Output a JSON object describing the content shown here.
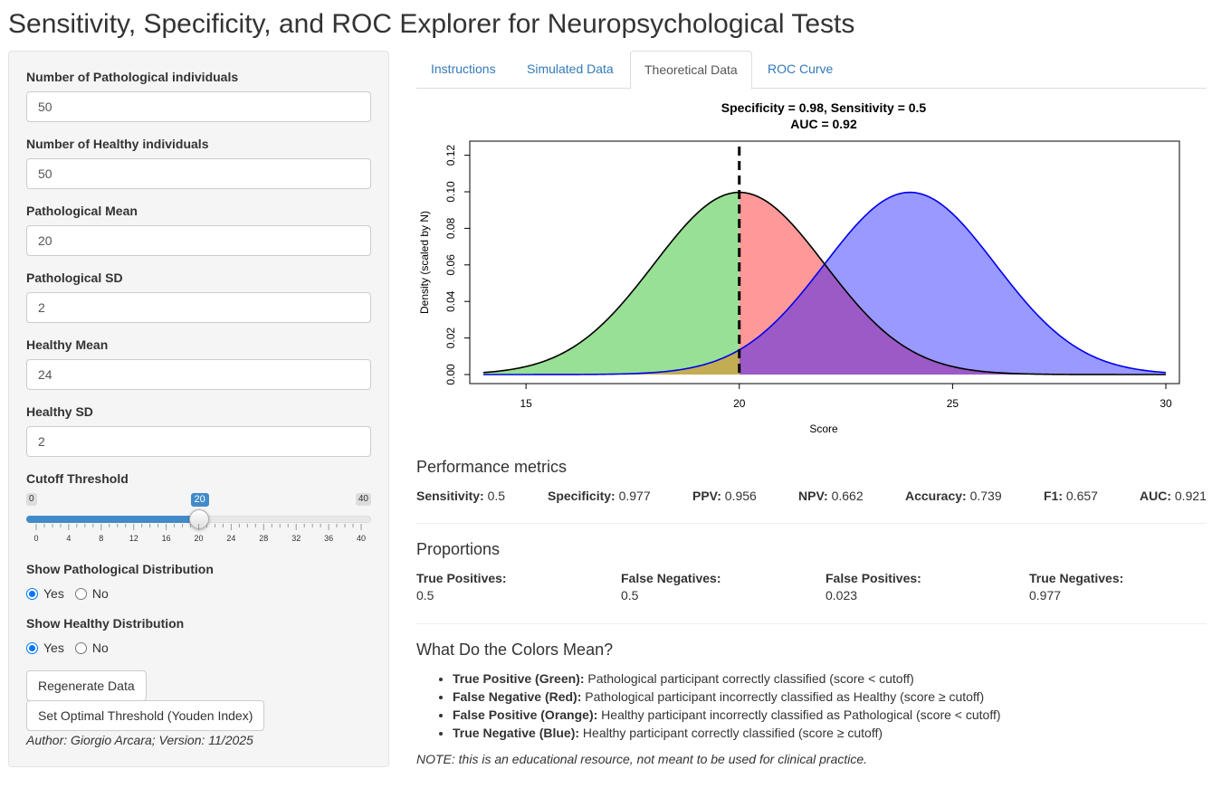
{
  "page": {
    "title": "Sensitivity, Specificity, and ROC Explorer for Neuropsychological Tests"
  },
  "sidebar": {
    "fields": [
      {
        "label": "Number of Pathological individuals",
        "value": "50"
      },
      {
        "label": "Number of Healthy individuals",
        "value": "50"
      },
      {
        "label": "Pathological Mean",
        "value": "20"
      },
      {
        "label": "Pathological SD",
        "value": "2"
      },
      {
        "label": "Healthy Mean",
        "value": "24"
      },
      {
        "label": "Healthy SD",
        "value": "2"
      }
    ],
    "cutoff": {
      "label": "Cutoff Threshold",
      "min": 0,
      "max": 40,
      "value": 20,
      "min_label": "0",
      "max_label": "40",
      "value_label": "20",
      "ticks": [
        "0",
        "4",
        "8",
        "12",
        "16",
        "20",
        "24",
        "28",
        "32",
        "36",
        "40"
      ]
    },
    "show_pathological": {
      "label": "Show Pathological Distribution",
      "yes": "Yes",
      "no": "No",
      "selected": "Yes"
    },
    "show_healthy": {
      "label": "Show Healthy Distribution",
      "yes": "Yes",
      "no": "No",
      "selected": "Yes"
    },
    "regenerate_label": "Regenerate Data",
    "optimal_label": "Set Optimal Threshold (Youden Index)",
    "author": "Author: Giorgio Arcara; Version: 11/2025"
  },
  "tabs": [
    {
      "label": "Instructions",
      "active": false
    },
    {
      "label": "Simulated Data",
      "active": false
    },
    {
      "label": "Theoretical Data",
      "active": true
    },
    {
      "label": "ROC Curve",
      "active": false
    }
  ],
  "colors": {
    "tp_fill": "#98e095",
    "fn_fill": "#ff9999",
    "healthy_fill": "#9999ff",
    "overlap_fill": "#9b5ac6",
    "fp_fill": "#c3ad52",
    "patho_line": "#000000",
    "healthy_line": "#0000ee",
    "accent": "#428bca",
    "link": "#337ab7"
  },
  "chart_data": {
    "type": "area",
    "title": "Specificity = 0.98, Sensitivity = 0.5",
    "subtitle": "AUC = 0.92",
    "xlabel": "Score",
    "ylabel": "Density (scaled by N)",
    "xlim": [
      14,
      30
    ],
    "ylim": [
      0,
      0.125
    ],
    "x_ticks": [
      "15",
      "20",
      "25",
      "30"
    ],
    "y_ticks": [
      "0.00",
      "0.02",
      "0.04",
      "0.06",
      "0.08",
      "0.10",
      "0.12"
    ],
    "cutoff": 20,
    "series": [
      {
        "name": "Pathological",
        "mean": 20,
        "sd": 2,
        "n": 50,
        "peak": 0.0997
      },
      {
        "name": "Healthy",
        "mean": 24,
        "sd": 2,
        "n": 50,
        "peak": 0.0997
      }
    ],
    "regions": [
      "True Positive",
      "False Negative",
      "False Positive",
      "True Negative"
    ]
  },
  "metrics": {
    "heading": "Performance metrics",
    "items": [
      {
        "label": "Sensitivity:",
        "value": "0.5"
      },
      {
        "label": "Specificity:",
        "value": "0.977"
      },
      {
        "label": "PPV:",
        "value": "0.956"
      },
      {
        "label": "NPV:",
        "value": "0.662"
      },
      {
        "label": "Accuracy:",
        "value": "0.739"
      },
      {
        "label": "F1:",
        "value": "0.657"
      },
      {
        "label": "AUC:",
        "value": "0.921"
      }
    ]
  },
  "proportions": {
    "heading": "Proportions",
    "items": [
      {
        "label": "True Positives:",
        "value": "0.5"
      },
      {
        "label": "False Negatives:",
        "value": "0.5"
      },
      {
        "label": "False Positives:",
        "value": "0.023"
      },
      {
        "label": "True Negatives:",
        "value": "0.977"
      }
    ]
  },
  "colors_legend": {
    "heading": "What Do the Colors Mean?",
    "items": [
      {
        "term": "True Positive (Green):",
        "desc": " Pathological participant correctly classified (score < cutoff)"
      },
      {
        "term": "False Negative (Red):",
        "desc": " Pathological participant incorrectly classified as Healthy (score ≥ cutoff)"
      },
      {
        "term": "False Positive (Orange):",
        "desc": " Healthy participant incorrectly classified as Pathological (score < cutoff)"
      },
      {
        "term": "True Negative (Blue):",
        "desc": " Healthy participant correctly classified (score ≥ cutoff)"
      }
    ],
    "note": "NOTE: this is an educational resource, not meant to be used for clinical practice."
  }
}
